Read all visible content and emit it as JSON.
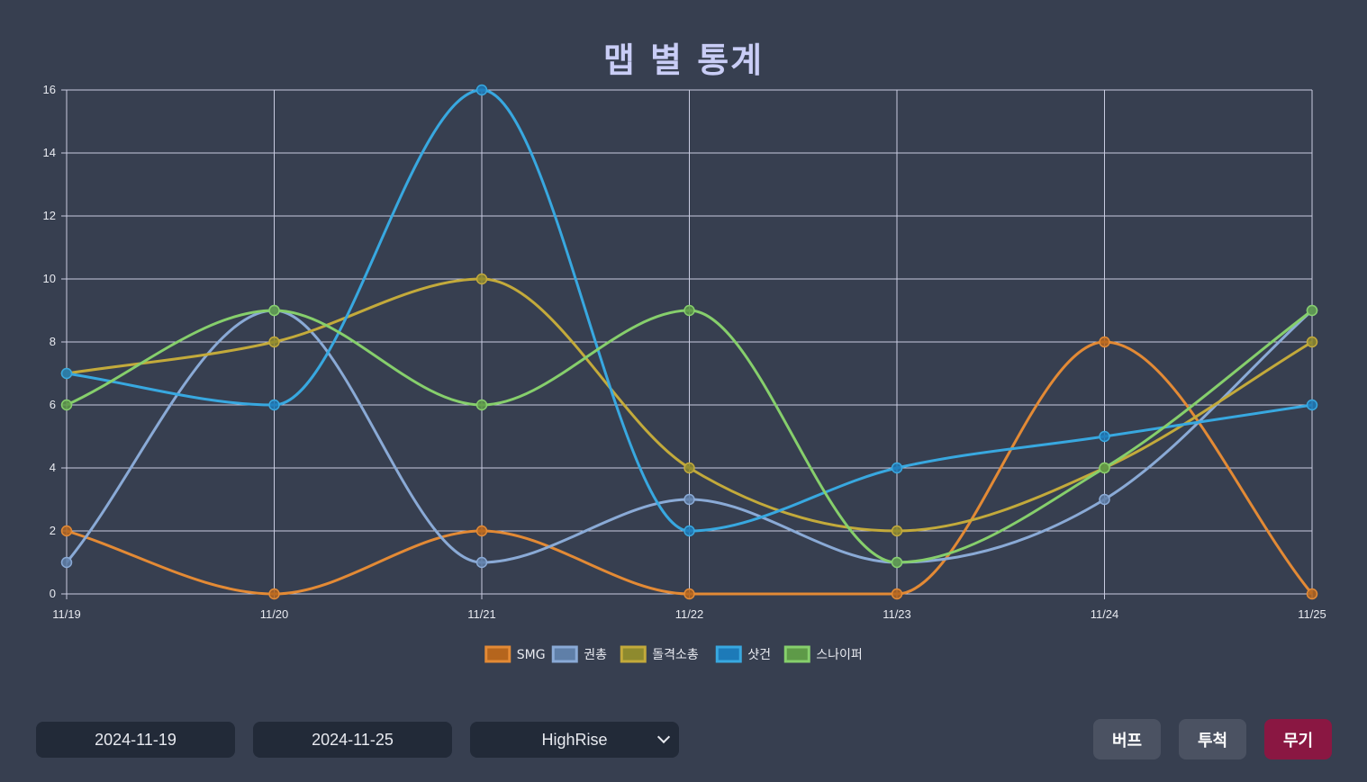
{
  "title": "맵 별 통계",
  "chart_data": {
    "type": "line",
    "title": "맵 별 통계",
    "categories": [
      "11/19",
      "11/20",
      "11/21",
      "11/22",
      "11/23",
      "11/24",
      "11/25"
    ],
    "ylim": [
      0,
      16
    ],
    "yticks": [
      "0",
      "2",
      "4",
      "6",
      "8",
      "10",
      "12",
      "14",
      "16"
    ],
    "grid": true,
    "legend_position": "bottom",
    "series": [
      {
        "name": "SMG",
        "color": "#e38a35",
        "fill": "#b5651d",
        "values": [
          2,
          0,
          2,
          0,
          0,
          8,
          0
        ]
      },
      {
        "name": "권총",
        "color": "#8aaad6",
        "fill": "#5f7fa8",
        "values": [
          1,
          9,
          1,
          3,
          1,
          3,
          9
        ]
      },
      {
        "name": "돌격소총",
        "color": "#c3aa3b",
        "fill": "#8e8a2e",
        "values": [
          7,
          8,
          10,
          4,
          2,
          4,
          8
        ]
      },
      {
        "name": "샷건",
        "color": "#38a8e0",
        "fill": "#1d7ab8",
        "values": [
          7,
          6,
          16,
          2,
          4,
          5,
          6
        ]
      },
      {
        "name": "스나이퍼",
        "color": "#86cf6c",
        "fill": "#5e9a48",
        "values": [
          6,
          9,
          6,
          9,
          1,
          4,
          9
        ]
      }
    ]
  },
  "controls": {
    "start_date": "2024-11-19",
    "end_date": "2024-11-25",
    "map_selected": "HighRise"
  },
  "buttons": {
    "buff": "버프",
    "throw": "투척",
    "weapon": "무기"
  }
}
